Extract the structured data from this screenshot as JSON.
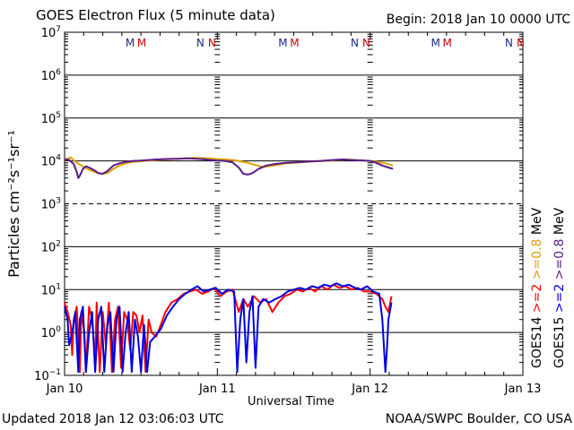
{
  "header": {
    "title": "GOES Electron Flux (5 minute data)",
    "begin": "Begin: 2018 Jan 10 0000 UTC"
  },
  "footer": {
    "updated": "Updated 2018 Jan 12 03:06:03 UTC",
    "credit": "NOAA/SWPC Boulder, CO USA"
  },
  "colors": {
    "goes14_high": "#e0a000",
    "goes15_high": "#5a1a8a",
    "goes14_low": "#ff0000",
    "goes15_low": "#0000e0",
    "marker_m": [
      "#1a2a8a",
      "#cc0000"
    ],
    "marker_n": [
      "#1a2a8a",
      "#cc0000"
    ]
  },
  "chart_data": {
    "type": "line",
    "title": "GOES Electron Flux (5 minute data)",
    "xlabel": "Universal Time",
    "ylabel": "Particles cm⁻²s⁻¹sr⁻¹",
    "y_scale": "log",
    "ylim": [
      0.1,
      10000000
    ],
    "xlim_days": [
      0,
      3
    ],
    "x_ticks": [
      "Jan 10",
      "Jan 11",
      "Jan 12",
      "Jan 13"
    ],
    "y_ticks": [
      {
        "base": "10",
        "exp": "7",
        "value": 10000000
      },
      {
        "base": "10",
        "exp": "6",
        "value": 1000000
      },
      {
        "base": "10",
        "exp": "5",
        "value": 100000
      },
      {
        "base": "10",
        "exp": "4",
        "value": 10000
      },
      {
        "base": "10",
        "exp": "3",
        "value": 1000
      },
      {
        "base": "10",
        "exp": "2",
        "value": 100
      },
      {
        "base": "10",
        "exp": "1",
        "value": 10
      },
      {
        "base": "10",
        "exp": "0",
        "value": 1
      },
      {
        "base": "10",
        "exp": "−1",
        "value": 0.1
      }
    ],
    "threshold_line": 1000,
    "markers": [
      {
        "day": 0.47,
        "labels": [
          "M",
          "M"
        ]
      },
      {
        "day": 0.93,
        "labels": [
          "N",
          "N"
        ]
      },
      {
        "day": 1.47,
        "labels": [
          "M",
          "M"
        ]
      },
      {
        "day": 1.94,
        "labels": [
          "N",
          "N"
        ]
      },
      {
        "day": 2.47,
        "labels": [
          "M",
          "M"
        ]
      },
      {
        "day": 2.95,
        "labels": [
          "N",
          "N"
        ]
      }
    ],
    "legend": {
      "right_col1": {
        "parts": [
          {
            "text": "GOES14",
            "color": "#000000"
          },
          {
            "text": ">=2",
            "color": "#ff0000"
          },
          {
            "text": ">=0.8",
            "color": "#e0a000"
          },
          {
            "text": "MeV",
            "color": "#000000"
          }
        ]
      },
      "right_col2": {
        "parts": [
          {
            "text": "GOES15",
            "color": "#000000"
          },
          {
            "text": ">=2",
            "color": "#0000e0"
          },
          {
            "text": ">=0.8",
            "color": "#5a1a8a"
          },
          {
            "text": "MeV",
            "color": "#000000"
          }
        ]
      }
    },
    "series": [
      {
        "name": "GOES14 >=0.8 MeV",
        "color": "#e0a000",
        "points": [
          [
            0.0,
            10500
          ],
          [
            0.04,
            12000
          ],
          [
            0.08,
            9000
          ],
          [
            0.12,
            7500
          ],
          [
            0.16,
            6200
          ],
          [
            0.2,
            5500
          ],
          [
            0.24,
            5000
          ],
          [
            0.28,
            5200
          ],
          [
            0.32,
            6500
          ],
          [
            0.36,
            7800
          ],
          [
            0.4,
            8800
          ],
          [
            0.45,
            9500
          ],
          [
            0.5,
            9800
          ],
          [
            0.55,
            10200
          ],
          [
            0.6,
            10500
          ],
          [
            0.65,
            10800
          ],
          [
            0.7,
            11000
          ],
          [
            0.75,
            11200
          ],
          [
            0.8,
            11500
          ],
          [
            0.85,
            11800
          ],
          [
            0.9,
            11600
          ],
          [
            0.95,
            11400
          ],
          [
            1.0,
            11000
          ],
          [
            1.05,
            10800
          ],
          [
            1.1,
            10500
          ],
          [
            1.15,
            9800
          ],
          [
            1.2,
            9000
          ],
          [
            1.25,
            8000
          ],
          [
            1.3,
            7200
          ],
          [
            1.35,
            7600
          ],
          [
            1.4,
            8200
          ],
          [
            1.45,
            8800
          ],
          [
            1.5,
            9000
          ],
          [
            1.55,
            9300
          ],
          [
            1.6,
            9600
          ],
          [
            1.65,
            9800
          ],
          [
            1.7,
            10000
          ],
          [
            1.75,
            10300
          ],
          [
            1.8,
            10600
          ],
          [
            1.85,
            10800
          ],
          [
            1.9,
            10500
          ],
          [
            1.95,
            10200
          ],
          [
            2.0,
            9900
          ],
          [
            2.05,
            9500
          ],
          [
            2.1,
            8800
          ],
          [
            2.15,
            7800
          ]
        ]
      },
      {
        "name": "GOES15 >=0.8 MeV",
        "color": "#5a1a8a",
        "points": [
          [
            0.0,
            11000
          ],
          [
            0.03,
            10500
          ],
          [
            0.06,
            8500
          ],
          [
            0.08,
            5500
          ],
          [
            0.09,
            4000
          ],
          [
            0.1,
            4500
          ],
          [
            0.12,
            6500
          ],
          [
            0.14,
            7500
          ],
          [
            0.16,
            7000
          ],
          [
            0.19,
            6200
          ],
          [
            0.22,
            5200
          ],
          [
            0.25,
            5000
          ],
          [
            0.28,
            5800
          ],
          [
            0.32,
            7800
          ],
          [
            0.36,
            8800
          ],
          [
            0.4,
            9500
          ],
          [
            0.45,
            10000
          ],
          [
            0.5,
            10200
          ],
          [
            0.55,
            10500
          ],
          [
            0.6,
            10800
          ],
          [
            0.65,
            11000
          ],
          [
            0.7,
            11200
          ],
          [
            0.75,
            11300
          ],
          [
            0.8,
            11500
          ],
          [
            0.85,
            11300
          ],
          [
            0.9,
            11000
          ],
          [
            0.95,
            10500
          ],
          [
            1.0,
            10200
          ],
          [
            1.05,
            10000
          ],
          [
            1.1,
            9200
          ],
          [
            1.14,
            7000
          ],
          [
            1.17,
            5000
          ],
          [
            1.2,
            4800
          ],
          [
            1.23,
            5200
          ],
          [
            1.27,
            6500
          ],
          [
            1.32,
            7800
          ],
          [
            1.38,
            8500
          ],
          [
            1.45,
            9000
          ],
          [
            1.52,
            9300
          ],
          [
            1.6,
            9700
          ],
          [
            1.68,
            10000
          ],
          [
            1.75,
            10500
          ],
          [
            1.82,
            10800
          ],
          [
            1.88,
            10500
          ],
          [
            1.94,
            10300
          ],
          [
            2.0,
            10000
          ],
          [
            2.04,
            9000
          ],
          [
            2.08,
            7800
          ],
          [
            2.12,
            7000
          ],
          [
            2.15,
            6500
          ]
        ]
      },
      {
        "name": "GOES14 >=2 MeV",
        "color": "#ff0000",
        "points": [
          [
            0.0,
            5
          ],
          [
            0.02,
            3
          ],
          [
            0.04,
            1.5
          ],
          [
            0.05,
            0.3
          ],
          [
            0.06,
            2
          ],
          [
            0.08,
            4
          ],
          [
            0.1,
            0.12
          ],
          [
            0.11,
            3
          ],
          [
            0.13,
            1
          ],
          [
            0.14,
            0.12
          ],
          [
            0.16,
            4
          ],
          [
            0.18,
            2
          ],
          [
            0.2,
            0.2
          ],
          [
            0.21,
            5
          ],
          [
            0.23,
            0.12
          ],
          [
            0.25,
            3
          ],
          [
            0.27,
            0.5
          ],
          [
            0.29,
            5
          ],
          [
            0.31,
            0.12
          ],
          [
            0.33,
            2
          ],
          [
            0.35,
            4
          ],
          [
            0.37,
            0.15
          ],
          [
            0.39,
            3
          ],
          [
            0.41,
            2
          ],
          [
            0.43,
            0.4
          ],
          [
            0.45,
            3
          ],
          [
            0.47,
            2.5
          ],
          [
            0.49,
            1
          ],
          [
            0.51,
            2.5
          ],
          [
            0.53,
            0.12
          ],
          [
            0.55,
            2
          ],
          [
            0.57,
            1
          ],
          [
            0.6,
            0.8
          ],
          [
            0.63,
            1.5
          ],
          [
            0.66,
            3
          ],
          [
            0.7,
            5
          ],
          [
            0.74,
            6
          ],
          [
            0.78,
            8
          ],
          [
            0.82,
            9
          ],
          [
            0.86,
            10
          ],
          [
            0.9,
            8
          ],
          [
            0.94,
            9
          ],
          [
            0.98,
            11
          ],
          [
            1.02,
            7
          ],
          [
            1.06,
            9
          ],
          [
            1.1,
            10
          ],
          [
            1.14,
            3
          ],
          [
            1.17,
            6
          ],
          [
            1.2,
            4
          ],
          [
            1.24,
            7
          ],
          [
            1.28,
            5
          ],
          [
            1.32,
            6
          ],
          [
            1.36,
            3
          ],
          [
            1.4,
            5
          ],
          [
            1.44,
            7
          ],
          [
            1.48,
            8
          ],
          [
            1.52,
            10
          ],
          [
            1.56,
            9
          ],
          [
            1.6,
            11
          ],
          [
            1.64,
            9
          ],
          [
            1.68,
            12
          ],
          [
            1.72,
            10
          ],
          [
            1.76,
            13
          ],
          [
            1.8,
            11
          ],
          [
            1.84,
            12
          ],
          [
            1.88,
            10
          ],
          [
            1.92,
            11
          ],
          [
            1.96,
            9
          ],
          [
            2.0,
            9
          ],
          [
            2.04,
            8
          ],
          [
            2.08,
            6
          ],
          [
            2.1,
            4
          ],
          [
            2.12,
            3
          ],
          [
            2.14,
            7
          ]
        ]
      },
      {
        "name": "GOES15 >=2 MeV",
        "color": "#0000e0",
        "points": [
          [
            0.0,
            4
          ],
          [
            0.02,
            2
          ],
          [
            0.03,
            0.5
          ],
          [
            0.05,
            1
          ],
          [
            0.07,
            3
          ],
          [
            0.09,
            0.12
          ],
          [
            0.1,
            2
          ],
          [
            0.12,
            4
          ],
          [
            0.14,
            0.12
          ],
          [
            0.16,
            1
          ],
          [
            0.18,
            3
          ],
          [
            0.2,
            0.12
          ],
          [
            0.22,
            2
          ],
          [
            0.24,
            4
          ],
          [
            0.26,
            0.12
          ],
          [
            0.28,
            1.5
          ],
          [
            0.3,
            3
          ],
          [
            0.32,
            0.12
          ],
          [
            0.34,
            2
          ],
          [
            0.36,
            4
          ],
          [
            0.38,
            0.12
          ],
          [
            0.4,
            1
          ],
          [
            0.42,
            3
          ],
          [
            0.44,
            0.12
          ],
          [
            0.46,
            2
          ],
          [
            0.48,
            0.8
          ],
          [
            0.5,
            0.12
          ],
          [
            0.52,
            1.5
          ],
          [
            0.54,
            0.12
          ],
          [
            0.56,
            0.6
          ],
          [
            0.59,
            0.8
          ],
          [
            0.63,
            1.2
          ],
          [
            0.67,
            2.5
          ],
          [
            0.71,
            4
          ],
          [
            0.75,
            6
          ],
          [
            0.79,
            8
          ],
          [
            0.83,
            10
          ],
          [
            0.87,
            12
          ],
          [
            0.91,
            9
          ],
          [
            0.95,
            10
          ],
          [
            0.99,
            11
          ],
          [
            1.03,
            8
          ],
          [
            1.07,
            10
          ],
          [
            1.11,
            9
          ],
          [
            1.13,
            0.12
          ],
          [
            1.15,
            2
          ],
          [
            1.17,
            6
          ],
          [
            1.19,
            0.2
          ],
          [
            1.21,
            3
          ],
          [
            1.23,
            7
          ],
          [
            1.25,
            0.15
          ],
          [
            1.27,
            4
          ],
          [
            1.3,
            6
          ],
          [
            1.34,
            5
          ],
          [
            1.38,
            6
          ],
          [
            1.42,
            7
          ],
          [
            1.46,
            9
          ],
          [
            1.5,
            10
          ],
          [
            1.54,
            11
          ],
          [
            1.58,
            10
          ],
          [
            1.62,
            12
          ],
          [
            1.66,
            11
          ],
          [
            1.7,
            13
          ],
          [
            1.74,
            12
          ],
          [
            1.78,
            14
          ],
          [
            1.82,
            12
          ],
          [
            1.86,
            13
          ],
          [
            1.9,
            11
          ],
          [
            1.94,
            10
          ],
          [
            1.98,
            12
          ],
          [
            2.02,
            9
          ],
          [
            2.06,
            8
          ],
          [
            2.08,
            2
          ],
          [
            2.1,
            0.12
          ],
          [
            2.11,
            0.4
          ],
          [
            2.12,
            2
          ],
          [
            2.14,
            5
          ]
        ]
      }
    ]
  }
}
